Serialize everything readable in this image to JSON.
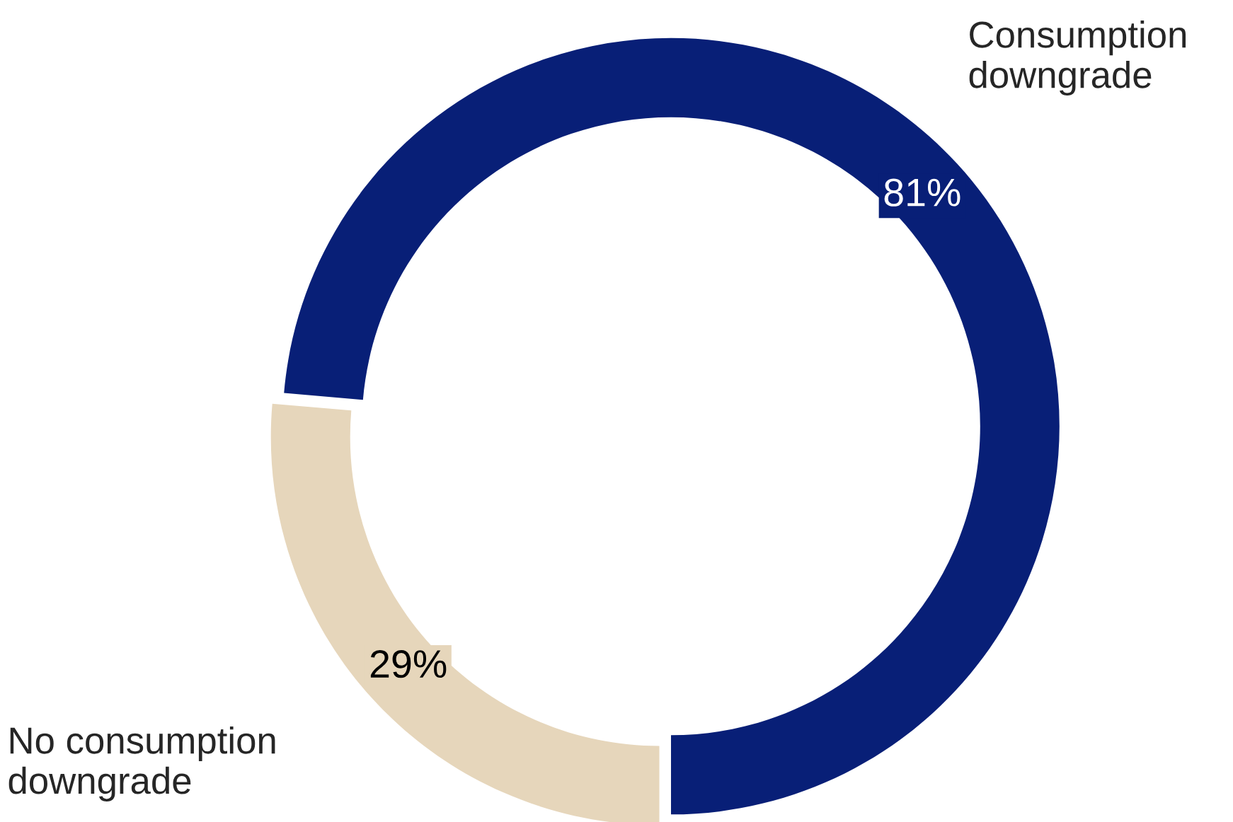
{
  "chart_data": {
    "type": "donut",
    "categories": [
      "Consumption downgrade",
      "No consumption downgrade"
    ],
    "values": [
      81,
      29
    ],
    "colors": [
      "#081f77",
      "#e6d6bb"
    ],
    "value_labels": [
      "81%",
      "29%"
    ],
    "legend": false
  }
}
